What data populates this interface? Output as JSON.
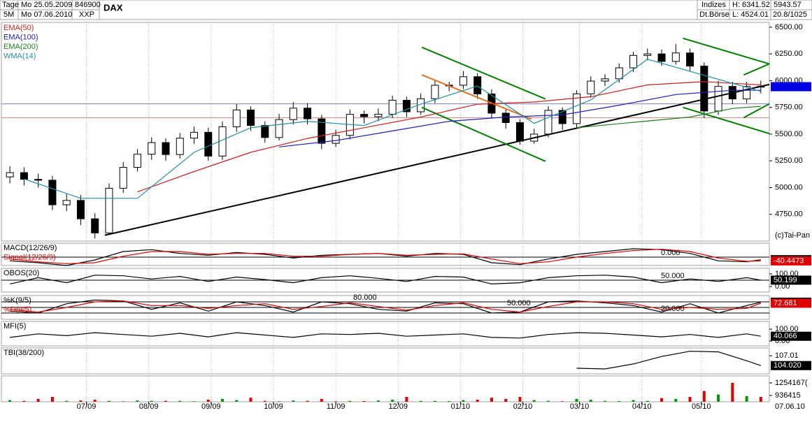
{
  "header": {
    "left": {
      "row1": [
        "Tage",
        "Mo 25.05.2009",
        "846900"
      ],
      "row2": [
        "5M",
        "Mo 07.06.2010",
        "XXP"
      ]
    },
    "title": "DAX",
    "right": {
      "row1": [
        "Indizes",
        "H: 6341.52",
        "5943.57"
      ],
      "row2": [
        "Dt.Börse",
        "L: 4524.01",
        "20.8/1025"
      ]
    }
  },
  "chart_data": [
    {
      "type": "candlestick",
      "x": [
        0,
        1,
        2,
        3,
        4,
        5,
        6,
        7,
        8,
        9,
        10,
        11,
        12,
        13,
        14,
        15,
        16,
        17,
        18,
        19,
        20,
        21,
        22,
        23,
        24,
        25,
        26,
        27,
        28,
        29,
        30,
        31,
        32,
        33,
        34,
        35,
        36,
        37,
        38,
        39,
        40,
        41,
        42,
        43,
        44,
        45,
        46,
        47,
        48,
        49,
        50,
        51,
        52,
        53
      ],
      "open": [
        5100,
        5140,
        5077,
        5069,
        4839,
        4880,
        4708,
        4576,
        4994,
        5189,
        5312,
        5421,
        5309,
        5462,
        5517,
        5295,
        5569,
        5726,
        5581,
        5468,
        5636,
        5743,
        5643,
        5414,
        5488,
        5685,
        5663,
        5686,
        5817,
        5709,
        5831,
        5957,
        5957,
        6037,
        5876,
        5696,
        5608,
        5434,
        5500,
        5722,
        5598,
        5877,
        5996,
        6017,
        6120,
        6236,
        6250,
        6180,
        6259,
        6136,
        5716,
        5946,
        5829,
        5946
      ],
      "high": [
        5200,
        5190,
        5130,
        5110,
        4940,
        4930,
        4760,
        5040,
        5240,
        5360,
        5470,
        5460,
        5510,
        5570,
        5560,
        5620,
        5780,
        5760,
        5620,
        5690,
        5800,
        5790,
        5680,
        5540,
        5730,
        5720,
        5740,
        5860,
        5850,
        5880,
        6010,
        5990,
        6090,
        6070,
        5920,
        5730,
        5640,
        5550,
        5760,
        5750,
        5910,
        6040,
        6060,
        6160,
        6270,
        6300,
        6290,
        6341.52,
        6300,
        6170,
        6000,
        5990,
        5990,
        6000
      ],
      "low": [
        5040,
        5020,
        5000,
        4790,
        4780,
        4650,
        4524.01,
        4560,
        4950,
        5150,
        5260,
        5250,
        5270,
        5410,
        5250,
        5260,
        5520,
        5530,
        5420,
        5440,
        5590,
        5590,
        5360,
        5380,
        5450,
        5600,
        5620,
        5650,
        5660,
        5680,
        5790,
        5900,
        5920,
        5830,
        5650,
        5550,
        5400,
        5410,
        5470,
        5540,
        5560,
        5840,
        5950,
        5980,
        6080,
        6190,
        6140,
        6150,
        6090,
        5650,
        5680,
        5780,
        5790,
        5880
      ],
      "close": [
        5140,
        5077,
        5069,
        4839,
        4880,
        4708,
        4576,
        4994,
        5189,
        5312,
        5421,
        5309,
        5462,
        5517,
        5295,
        5569,
        5726,
        5581,
        5468,
        5636,
        5743,
        5643,
        5414,
        5488,
        5685,
        5663,
        5686,
        5817,
        5709,
        5831,
        5957,
        5957,
        6037,
        5876,
        5696,
        5608,
        5434,
        5500,
        5722,
        5598,
        5877,
        5996,
        6017,
        6120,
        6236,
        6250,
        6180,
        6259,
        6136,
        5716,
        5946,
        5829,
        5946,
        5943.57
      ],
      "xlim": [
        -0.6,
        53.6
      ],
      "ylim": [
        4500,
        6545
      ],
      "grid": true,
      "xticks": [
        {
          "value": 5.4,
          "label": "07/09"
        },
        {
          "value": 9.8,
          "label": "08/09"
        },
        {
          "value": 14.2,
          "label": "09/09"
        },
        {
          "value": 18.6,
          "label": "10/09"
        },
        {
          "value": 23.0,
          "label": "11/09"
        },
        {
          "value": 27.4,
          "label": "12/09"
        },
        {
          "value": 31.8,
          "label": "01/10"
        },
        {
          "value": 36.2,
          "label": "02/10"
        },
        {
          "value": 40.2,
          "label": "03/10"
        },
        {
          "value": 44.6,
          "label": "04/10"
        },
        {
          "value": 48.8,
          "label": "05/10"
        }
      ],
      "end_date": "07.06.10",
      "yticks": [
        {
          "value": 4750,
          "label": "4750.00"
        },
        {
          "value": 5000,
          "label": "5000.00"
        },
        {
          "value": 5250,
          "label": "5250.00"
        },
        {
          "value": 5500,
          "label": "5500.00"
        },
        {
          "value": 5750,
          "label": "5750.00"
        },
        {
          "value": 6000,
          "label": "6000.00"
        },
        {
          "value": 6250,
          "label": "6250.00"
        },
        {
          "value": 6500,
          "label": "6500.00"
        }
      ],
      "last": {
        "value": 5943.57,
        "color": "#0000e0"
      },
      "copyright": "(c)Tai-Pan",
      "series": [
        {
          "name": "EMA(50)",
          "color": "#d02020",
          "x": [
            9,
            13,
            17,
            21,
            25,
            29,
            33,
            37,
            41,
            45,
            49,
            53
          ],
          "values": [
            4960,
            5150,
            5330,
            5460,
            5560,
            5660,
            5780,
            5800,
            5850,
            5960,
            5990,
            5960
          ]
        },
        {
          "name": "EMA(100)",
          "color": "#2020c0",
          "x": [
            19,
            23,
            27,
            31,
            35,
            39,
            43,
            47,
            51,
            53
          ],
          "values": [
            5380,
            5440,
            5530,
            5620,
            5660,
            5680,
            5770,
            5870,
            5910,
            5910
          ]
        },
        {
          "name": "EMA(200)",
          "color": "#208020",
          "x": [
            40,
            44,
            48,
            51,
            53
          ],
          "values": [
            5560,
            5610,
            5660,
            5740,
            5760
          ]
        },
        {
          "name": "WMA(14)",
          "color": "#2090a0",
          "x": [
            1,
            5,
            9,
            13,
            17,
            21,
            25,
            29,
            33,
            37,
            41,
            45,
            49,
            53
          ],
          "values": [
            5080,
            4900,
            4900,
            5330,
            5560,
            5620,
            5580,
            5780,
            5950,
            5600,
            5820,
            6200,
            6050,
            5900
          ]
        }
      ],
      "trendlines": [
        {
          "color": "#000000",
          "x": [
            6.7,
            53.6
          ],
          "values": [
            4555,
            5964
          ]
        },
        {
          "color": "#008000",
          "x": [
            29.07,
            37.8
          ],
          "values": [
            6312,
            5828
          ]
        },
        {
          "color": "#008000",
          "x": [
            29.07,
            37.8
          ],
          "values": [
            5750,
            5246
          ]
        },
        {
          "color": "#008000",
          "x": [
            47.5,
            53.6
          ],
          "values": [
            6396,
            6157
          ]
        },
        {
          "color": "#008000",
          "x": [
            47.5,
            53.6
          ],
          "values": [
            5750,
            5505
          ]
        },
        {
          "color": "#008000",
          "x": [
            51.8,
            53.6
          ],
          "values": [
            6054,
            6157
          ]
        },
        {
          "color": "#008000",
          "x": [
            51.8,
            53.6
          ],
          "values": [
            5654,
            5783
          ]
        },
        {
          "color": "#e07020",
          "x": [
            29.07,
            36.8
          ],
          "values": [
            6054,
            5641
          ]
        }
      ],
      "hlines": [
        {
          "color": "#8080d0",
          "value": 5783
        },
        {
          "color": "#d08080",
          "value": 5654
        }
      ]
    },
    {
      "type": "line",
      "ylim": [
        -90,
        150
      ],
      "levels": [
        {
          "value": 0,
          "label": "0.000"
        }
      ],
      "series": [
        {
          "name": "MACD(12/26/9)",
          "color": "#000000",
          "x": [
            0,
            2,
            4,
            6,
            8,
            10,
            12,
            14,
            16,
            18,
            20,
            22,
            24,
            26,
            28,
            30,
            32,
            34,
            36,
            38,
            40,
            42,
            44,
            46,
            48,
            50,
            52,
            53
          ],
          "values": [
            -40,
            -60,
            -90,
            -30,
            60,
            80,
            40,
            20,
            50,
            30,
            -10,
            20,
            30,
            40,
            10,
            40,
            30,
            -60,
            -80,
            -20,
            30,
            60,
            90,
            80,
            40,
            -40,
            -50,
            -27.4096
          ],
          "last": -27.4096
        },
        {
          "name": "Signal(12/26/9)",
          "color": "#e00000",
          "x": [
            0,
            2,
            4,
            6,
            8,
            10,
            12,
            14,
            16,
            18,
            20,
            22,
            24,
            26,
            28,
            30,
            32,
            34,
            36,
            38,
            40,
            42,
            44,
            46,
            48,
            50,
            52,
            53
          ],
          "values": [
            -20,
            -50,
            -70,
            -60,
            10,
            60,
            60,
            30,
            40,
            40,
            10,
            10,
            30,
            40,
            20,
            30,
            35,
            -20,
            -70,
            -50,
            0,
            40,
            70,
            85,
            60,
            -10,
            -45,
            -40.4473
          ],
          "last": -40.4473
        }
      ]
    },
    {
      "type": "line",
      "ylim": [
        -44,
        144
      ],
      "yticks": [
        {
          "value": 0,
          "label": "0.00"
        },
        {
          "value": 100,
          "label": "100.00"
        }
      ],
      "levels": [
        {
          "value": 50,
          "label": "50.000"
        }
      ],
      "series": [
        {
          "name": "OBOS(20)",
          "color": "#000000",
          "x": [
            0,
            2,
            4,
            6,
            8,
            10,
            12,
            14,
            16,
            18,
            20,
            22,
            24,
            26,
            28,
            30,
            32,
            34,
            36,
            38,
            40,
            42,
            44,
            46,
            48,
            50,
            52,
            53
          ],
          "values": [
            20,
            70,
            30,
            90,
            85,
            60,
            80,
            40,
            75,
            55,
            30,
            70,
            85,
            65,
            40,
            80,
            75,
            20,
            30,
            70,
            85,
            90,
            75,
            30,
            60,
            40,
            70,
            50.199
          ],
          "last": 50.199
        }
      ]
    },
    {
      "type": "line",
      "ylim": [
        -14,
        114
      ],
      "levels": [
        {
          "value": 80,
          "label": "80.000"
        },
        {
          "value": 50,
          "label": "50.000"
        },
        {
          "value": 20,
          "label": "20.000"
        }
      ],
      "series": [
        {
          "name": "%K(9/5)",
          "color": "#000000",
          "x": [
            0,
            2,
            4,
            6,
            8,
            10,
            12,
            14,
            16,
            18,
            20,
            22,
            24,
            26,
            28,
            30,
            32,
            34,
            36,
            38,
            40,
            42,
            44,
            46,
            48,
            50,
            52,
            53
          ],
          "values": [
            30,
            20,
            70,
            90,
            85,
            40,
            75,
            30,
            80,
            60,
            25,
            80,
            70,
            40,
            30,
            75,
            70,
            20,
            25,
            80,
            85,
            75,
            60,
            25,
            70,
            20,
            60,
            78.197
          ],
          "last": 78.197
        },
        {
          "name": "%D(9/5)",
          "color": "#e00000",
          "x": [
            0,
            2,
            4,
            6,
            8,
            10,
            12,
            14,
            16,
            18,
            20,
            22,
            24,
            26,
            28,
            30,
            32,
            34,
            36,
            38,
            40,
            42,
            44,
            46,
            48,
            50,
            52,
            53
          ],
          "values": [
            40,
            25,
            50,
            80,
            85,
            60,
            60,
            45,
            60,
            70,
            40,
            55,
            75,
            55,
            35,
            60,
            75,
            40,
            25,
            55,
            80,
            80,
            70,
            40,
            50,
            40,
            45,
            72.681
          ],
          "last": 72.681
        }
      ]
    },
    {
      "type": "line",
      "ylim": [
        -41,
        165
      ],
      "yticks": [
        {
          "value": 0,
          "label": "0.00"
        },
        {
          "value": 100,
          "label": "100.00"
        }
      ],
      "series": [
        {
          "name": "MFI(5)",
          "color": "#000000",
          "x": [
            0,
            2,
            4,
            6,
            8,
            10,
            12,
            14,
            16,
            18,
            20,
            22,
            24,
            26,
            28,
            30,
            32,
            34,
            36,
            38,
            40,
            42,
            44,
            46,
            48,
            50,
            52,
            53
          ],
          "values": [
            30,
            60,
            45,
            70,
            55,
            40,
            65,
            35,
            70,
            50,
            30,
            60,
            55,
            65,
            40,
            50,
            60,
            30,
            25,
            55,
            70,
            65,
            50,
            35,
            55,
            30,
            60,
            40.066
          ],
          "last": 40.066
        }
      ]
    },
    {
      "type": "line",
      "ylim": [
        101.5,
        109.4
      ],
      "yticks": [
        107.01
      ],
      "series": [
        {
          "name": "TBI(38/200)",
          "color": "#000000",
          "x": [
            40,
            42,
            44,
            46,
            48,
            50,
            52,
            53
          ],
          "values": [
            103.2,
            103.0,
            104.5,
            106.8,
            108.4,
            108.2,
            105.5,
            104.02
          ],
          "last": {
            "value": 104.02,
            "label": "104.020"
          }
        }
      ]
    },
    {
      "type": "bar",
      "ylim": [
        777000,
        1431000
      ],
      "up_color": "#009900",
      "down_color": "#e00000",
      "yticks": [
        936415,
        {
          "value": 1254167,
          "label": "1254167("
        }
      ],
      "values": [
        820000,
        800000,
        850000,
        900000,
        800000,
        810000,
        830000,
        800000,
        790000,
        810000,
        800000,
        800000,
        800000,
        790000,
        830000,
        850000,
        820000,
        880000,
        800000,
        790000,
        810000,
        800000,
        850000,
        790000,
        800000,
        795000,
        810000,
        830000,
        900000,
        800000,
        800000,
        795000,
        820000,
        830000,
        880000,
        850000,
        900000,
        820000,
        800000,
        790000,
        850000,
        830000,
        800000,
        795000,
        820000,
        800000,
        870000,
        850000,
        900000,
        1050000,
        960000,
        1254167,
        920000,
        900000
      ]
    }
  ]
}
